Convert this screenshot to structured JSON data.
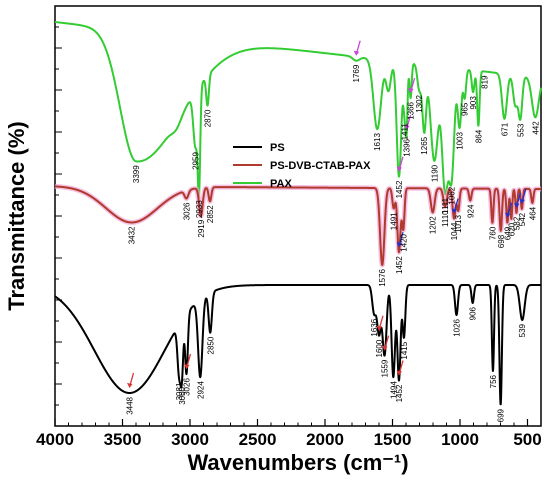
{
  "chart_data": {
    "type": "line",
    "title": "",
    "xlabel": "Wavenumbers (cm⁻¹)",
    "ylabel": "Transmittance (%)",
    "xlim": [
      4000,
      400
    ],
    "x_reversed": true,
    "ylim": [
      0,
      100
    ],
    "y_tick_labels_shown": false,
    "x_ticks": [
      4000,
      3500,
      3000,
      2500,
      2000,
      1500,
      1000,
      500
    ],
    "x_tick_labels": [
      "4000",
      "3500",
      "3000",
      "2500",
      "2000",
      "1500",
      "1000",
      "500"
    ],
    "legend": {
      "placement": "center",
      "entries": [
        {
          "label": "PS",
          "color": "#000000"
        },
        {
          "label": "PS-DVB-CTAB-PAX",
          "color": "#b03a2e"
        },
        {
          "label": "PAX",
          "color": "#33cc33"
        }
      ]
    },
    "series": [
      {
        "name": "PAX",
        "color": "#33cc33",
        "peaks": [
          "3399",
          "2959",
          "2933",
          "2870",
          "1769",
          "1613",
          "1452",
          "1411",
          "1366",
          "1396",
          "1302",
          "1265",
          "1190",
          "1111",
          "1062",
          "1003",
          "965",
          "903",
          "864",
          "819",
          "671",
          "553",
          "442"
        ]
      },
      {
        "name": "PS-DVB-CTAB-PAX",
        "color": "#b03a2e",
        "peaks": [
          "3432",
          "3026",
          "2919",
          "2852",
          "1576",
          "1491",
          "1452",
          "1420",
          "1202",
          "1110",
          "1044",
          "1013",
          "924",
          "760",
          "698",
          "649",
          "620",
          "582",
          "542",
          "464"
        ]
      },
      {
        "name": "PS",
        "color": "#000000",
        "peaks": [
          "3448",
          "3081",
          "3060",
          "3026",
          "2924",
          "2850",
          "1636",
          "1600",
          "1559",
          "1494",
          "1452",
          "1415",
          "1026",
          "906",
          "756",
          "699",
          "539"
        ]
      }
    ]
  }
}
